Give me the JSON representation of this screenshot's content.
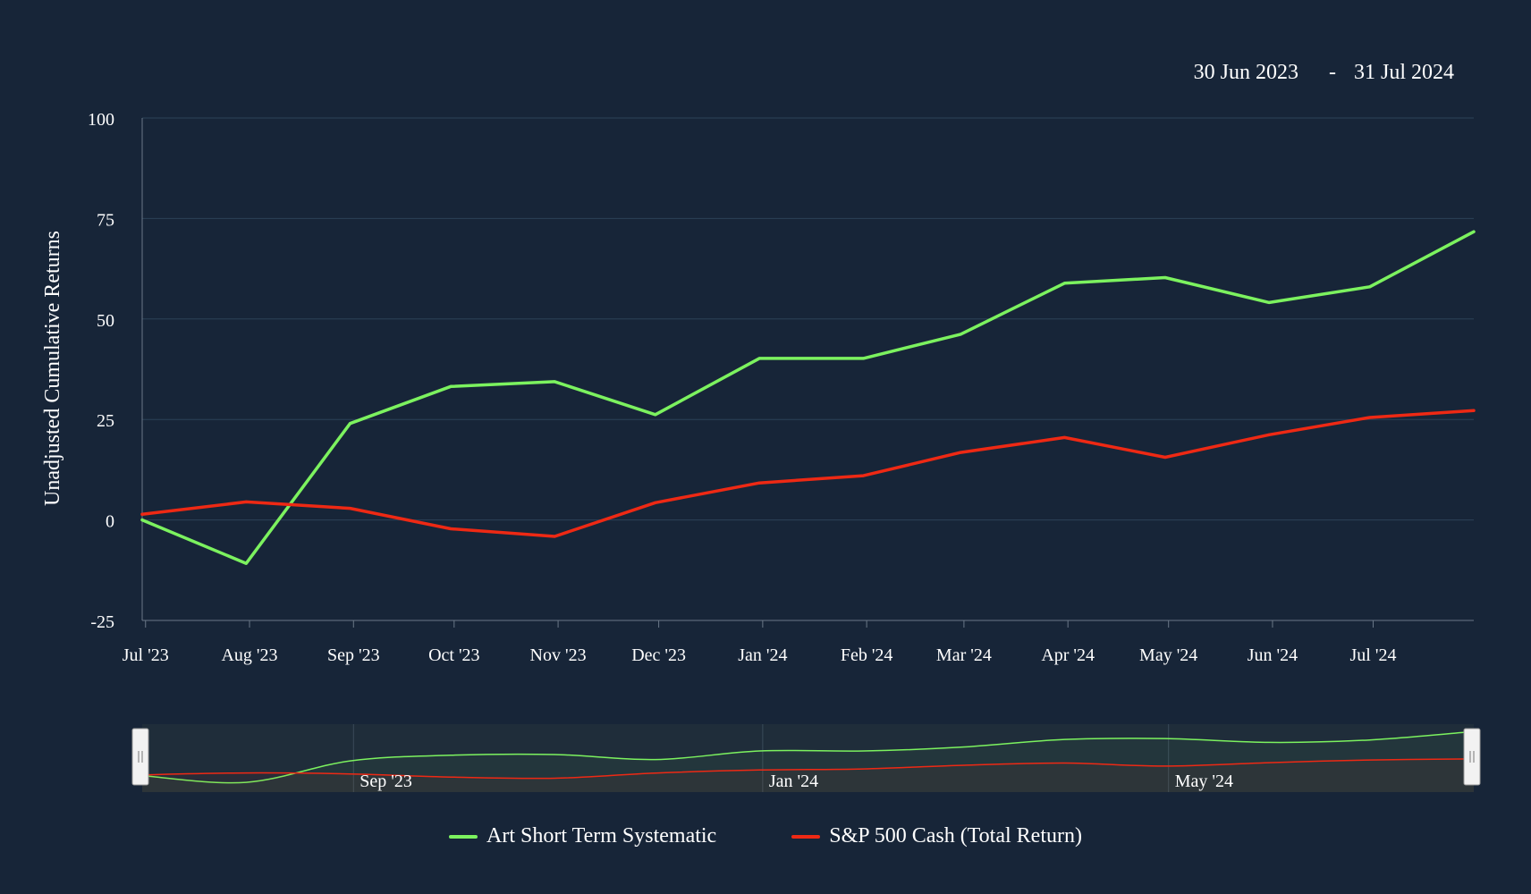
{
  "header": {
    "date_from": "30 Jun 2023",
    "date_separator": "-",
    "date_to": "31 Jul 2024"
  },
  "chart_data": {
    "type": "line",
    "ylabel": "Unadjusted Cumulative Returns",
    "ylim": [
      -25,
      100
    ],
    "y_ticks": [
      -25,
      0,
      25,
      50,
      75,
      100
    ],
    "x_ticks": [
      "Jul '23",
      "Aug '23",
      "Sep '23",
      "Oct '23",
      "Nov '23",
      "Dec '23",
      "Jan '24",
      "Feb '24",
      "Mar '24",
      "Apr '24",
      "May '24",
      "Jun '24",
      "Jul '24"
    ],
    "x": [
      "2023-06-30",
      "2023-07-31",
      "2023-08-31",
      "2023-09-30",
      "2023-10-31",
      "2023-11-30",
      "2023-12-31",
      "2024-01-31",
      "2024-02-29",
      "2024-03-31",
      "2024-04-30",
      "2024-05-31",
      "2024-06-30",
      "2024-07-31"
    ],
    "grid": true,
    "legend_position": "bottom-center",
    "series": [
      {
        "name": "Art Short Term Systematic",
        "color": "#7cf25f",
        "values": [
          0,
          -10.8,
          24,
          33.2,
          34.4,
          26.2,
          40.2,
          40.2,
          46.2,
          58.9,
          60.3,
          54.1,
          58,
          71.7
        ]
      },
      {
        "name": "S&P 500 Cash (Total Return)",
        "color": "#ee2914",
        "values": [
          1.4,
          4.5,
          2.9,
          -2.2,
          -4.1,
          4.3,
          9.2,
          11,
          16.8,
          20.5,
          15.6,
          21.2,
          25.5,
          27.2
        ]
      }
    ],
    "navigator": {
      "labels": [
        "Sep '23",
        "Jan '24",
        "May '24"
      ]
    }
  }
}
